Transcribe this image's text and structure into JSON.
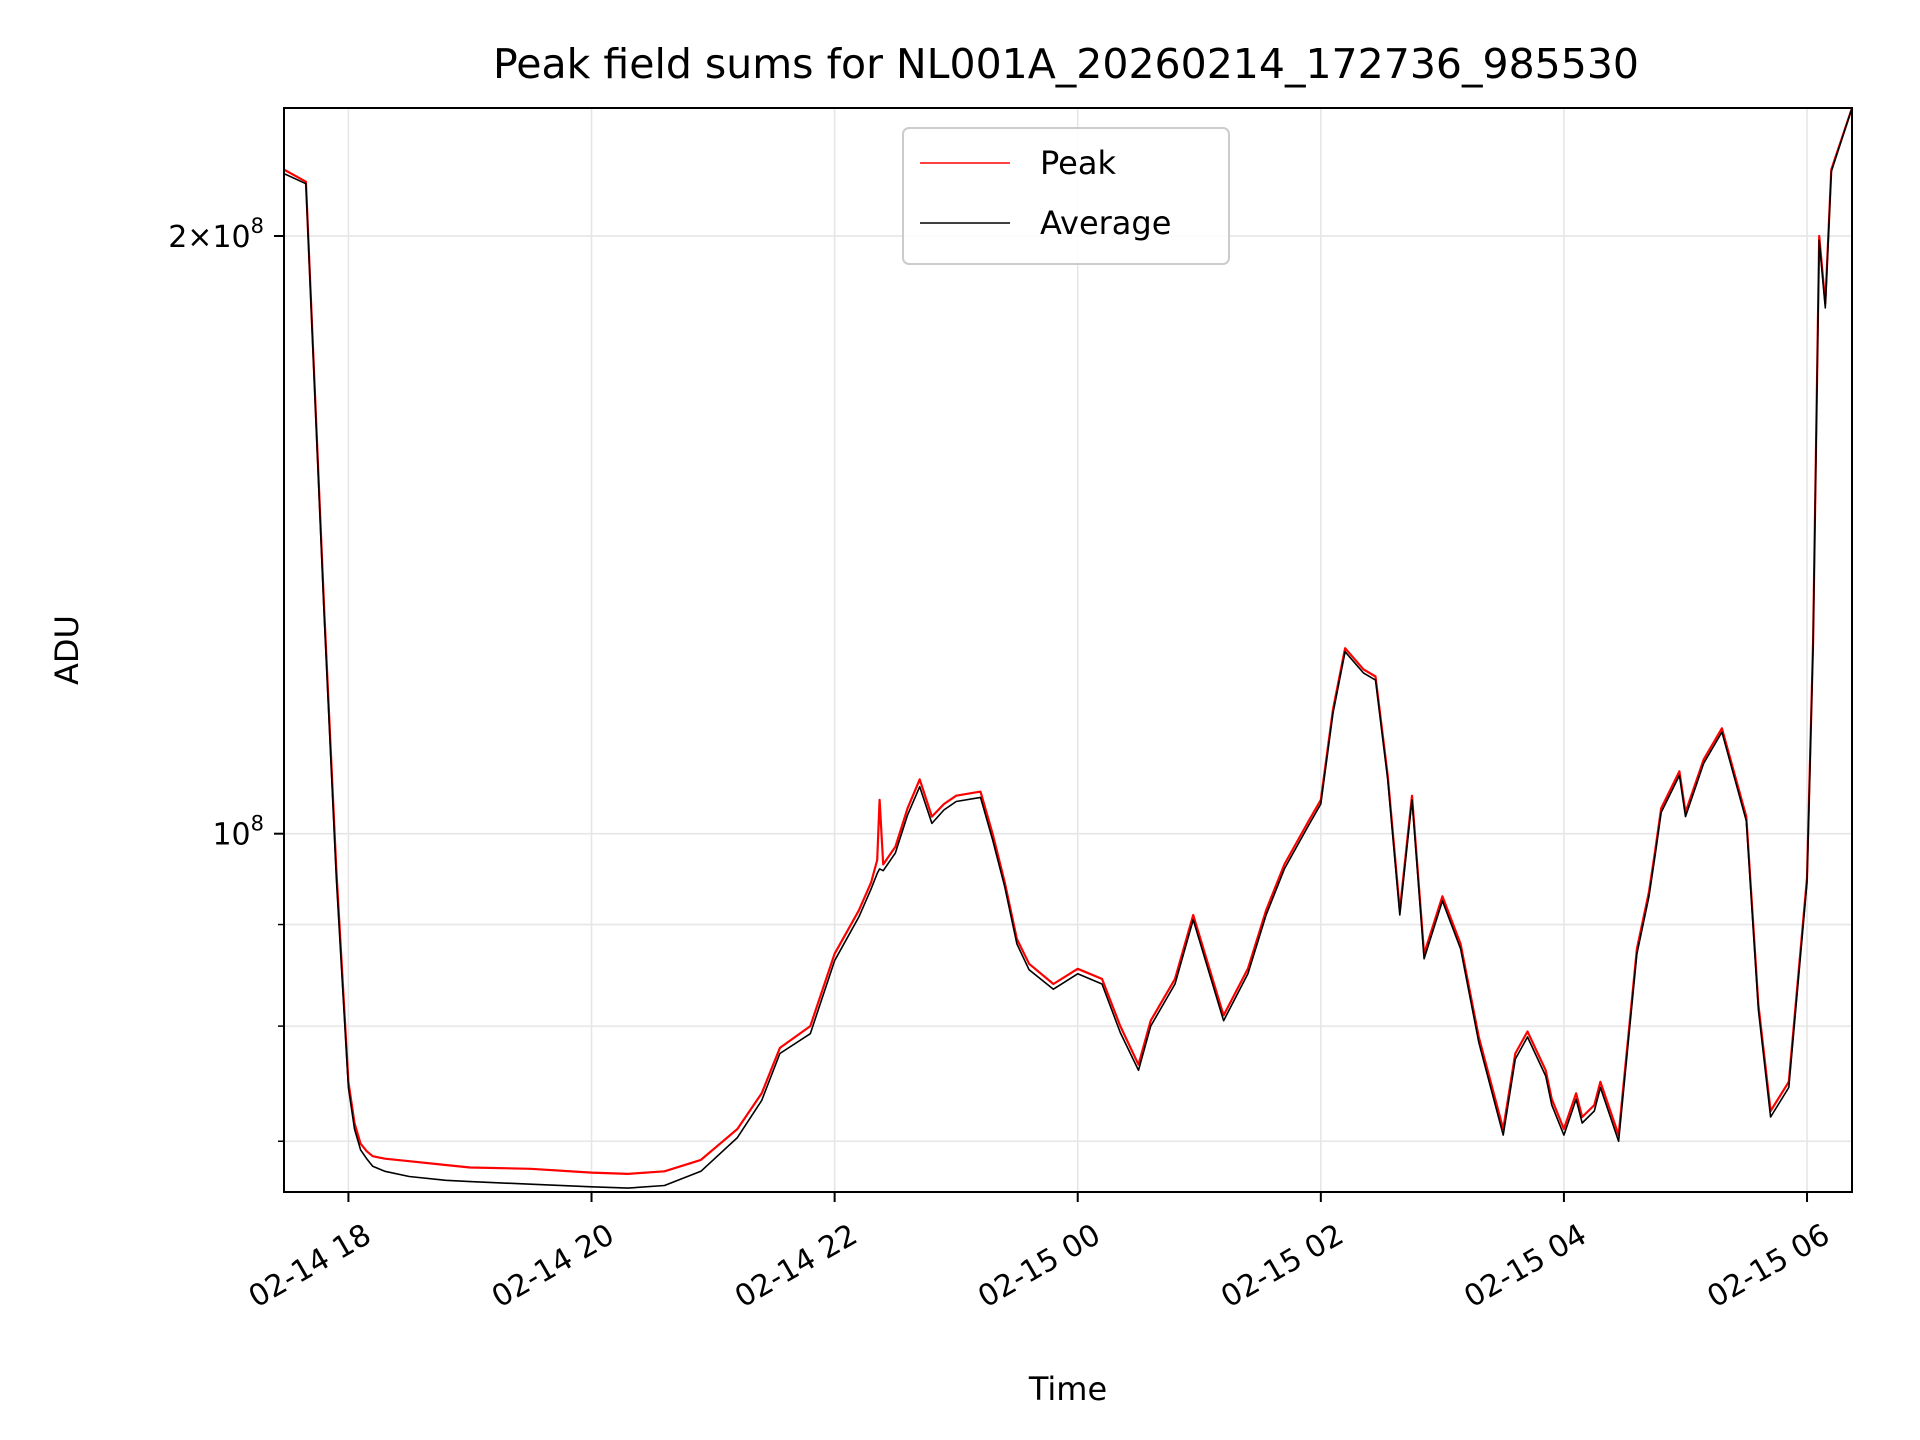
{
  "chart_data": {
    "type": "line",
    "title": "Peak field sums for NL001A_20260214_172736_985530",
    "xlabel": "Time",
    "ylabel": "ADU",
    "yscale": "log",
    "xlim_hours": [
      17.47,
      30.37
    ],
    "ylim": [
      66000000,
      232000000
    ],
    "x_unit": "hours since 02-14 00:00",
    "x_ticks": [
      {
        "value": 18,
        "label": "02-14 18"
      },
      {
        "value": 20,
        "label": "02-14 20"
      },
      {
        "value": 22,
        "label": "02-14 22"
      },
      {
        "value": 24,
        "label": "02-15 00"
      },
      {
        "value": 26,
        "label": "02-15 02"
      },
      {
        "value": 28,
        "label": "02-15 04"
      },
      {
        "value": 30,
        "label": "02-15 06"
      }
    ],
    "y_major_ticks": [
      {
        "value": 100000000,
        "base": "10",
        "exp": "8",
        "mantissa": ""
      },
      {
        "value": 200000000,
        "base": "10",
        "exp": "8",
        "mantissa": "2×"
      }
    ],
    "y_minor_ticks": [
      70000000,
      80000000,
      90000000
    ],
    "grid": true,
    "legend_location": "upper center",
    "colors": {
      "peak": "#ff0000",
      "average": "#000000",
      "grid": "#e6e6e6"
    },
    "series": [
      {
        "name": "Peak",
        "color": "#ff0000",
        "x": [
          17.47,
          17.65,
          17.8,
          17.9,
          18.0,
          18.05,
          18.1,
          18.15,
          18.2,
          18.3,
          18.5,
          18.8,
          19.0,
          19.5,
          20.0,
          20.3,
          20.6,
          20.9,
          21.2,
          21.4,
          21.55,
          21.8,
          22.0,
          22.2,
          22.3,
          22.35,
          22.37,
          22.4,
          22.5,
          22.6,
          22.7,
          22.8,
          22.9,
          23.0,
          23.2,
          23.3,
          23.4,
          23.5,
          23.6,
          23.8,
          24.0,
          24.2,
          24.35,
          24.5,
          24.6,
          24.8,
          24.95,
          25.2,
          25.4,
          25.55,
          25.7,
          25.9,
          26.0,
          26.1,
          26.2,
          26.35,
          26.45,
          26.55,
          26.65,
          26.75,
          26.85,
          27.0,
          27.15,
          27.3,
          27.5,
          27.6,
          27.7,
          27.85,
          27.9,
          28.0,
          28.1,
          28.15,
          28.25,
          28.3,
          28.45,
          28.6,
          28.7,
          28.75,
          28.8,
          28.95,
          29.0,
          29.15,
          29.3,
          29.5,
          29.6,
          29.7,
          29.85,
          30.0,
          30.05,
          30.1,
          30.15,
          30.2,
          30.37
        ],
        "y": [
          216000000,
          213000000,
          130000000,
          96000000,
          75000000,
          71500000,
          69800000,
          69200000,
          68800000,
          68600000,
          68400000,
          68100000,
          67900000,
          67800000,
          67500000,
          67400000,
          67600000,
          68500000,
          71000000,
          74000000,
          78000000,
          80000000,
          87000000,
          91500000,
          94500000,
          97000000,
          104000000,
          96500000,
          98500000,
          103000000,
          106500000,
          102000000,
          103500000,
          104500000,
          105000000,
          100000000,
          94500000,
          88500000,
          86000000,
          84000000,
          85500000,
          84500000,
          80000000,
          76500000,
          80500000,
          84500000,
          91000000,
          81000000,
          85500000,
          91500000,
          96500000,
          101500000,
          104000000,
          115500000,
          124000000,
          121000000,
          120000000,
          107000000,
          91500000,
          104500000,
          87000000,
          93000000,
          88000000,
          79000000,
          71000000,
          77500000,
          79500000,
          76000000,
          73500000,
          71000000,
          74000000,
          72000000,
          73000000,
          75000000,
          70500000,
          87500000,
          93500000,
          98000000,
          103000000,
          107500000,
          102500000,
          109000000,
          113000000,
          102000000,
          82000000,
          72500000,
          75000000,
          95000000,
          125000000,
          200000000,
          185000000,
          216000000,
          232000000
        ]
      },
      {
        "name": "Average",
        "color": "#000000",
        "x": [
          17.47,
          17.65,
          17.8,
          17.9,
          18.0,
          18.05,
          18.1,
          18.15,
          18.2,
          18.3,
          18.5,
          18.8,
          19.0,
          19.5,
          20.0,
          20.3,
          20.6,
          20.9,
          21.2,
          21.4,
          21.55,
          21.8,
          22.0,
          22.2,
          22.3,
          22.35,
          22.37,
          22.4,
          22.5,
          22.6,
          22.7,
          22.8,
          22.9,
          23.0,
          23.2,
          23.3,
          23.4,
          23.5,
          23.6,
          23.8,
          24.0,
          24.2,
          24.35,
          24.5,
          24.6,
          24.8,
          24.95,
          25.2,
          25.4,
          25.55,
          25.7,
          25.9,
          26.0,
          26.1,
          26.2,
          26.35,
          26.45,
          26.55,
          26.65,
          26.75,
          26.85,
          27.0,
          27.15,
          27.3,
          27.5,
          27.6,
          27.7,
          27.85,
          27.9,
          28.0,
          28.1,
          28.15,
          28.25,
          28.3,
          28.45,
          28.6,
          28.7,
          28.75,
          28.8,
          28.95,
          29.0,
          29.15,
          29.3,
          29.5,
          29.6,
          29.7,
          29.85,
          30.0,
          30.05,
          30.1,
          30.15,
          30.2,
          30.37
        ],
        "y": [
          215000000,
          212500000,
          129000000,
          95000000,
          74500000,
          71000000,
          69300000,
          68600000,
          68000000,
          67600000,
          67200000,
          66900000,
          66800000,
          66600000,
          66400000,
          66300000,
          66500000,
          67600000,
          70300000,
          73400000,
          77500000,
          79300000,
          86300000,
          90800000,
          93800000,
          95500000,
          96000000,
          95800000,
          97800000,
          102200000,
          105600000,
          101200000,
          102800000,
          103800000,
          104300000,
          99300000,
          94000000,
          88000000,
          85400000,
          83500000,
          85000000,
          84000000,
          79400000,
          76000000,
          80000000,
          84000000,
          90500000,
          80500000,
          85000000,
          91000000,
          96000000,
          101000000,
          103500000,
          115000000,
          123500000,
          120500000,
          119500000,
          106500000,
          91000000,
          104000000,
          86500000,
          92500000,
          87500000,
          78500000,
          70500000,
          77000000,
          79000000,
          75500000,
          73000000,
          70500000,
          73500000,
          71500000,
          72500000,
          74500000,
          70000000,
          87000000,
          93000000,
          97500000,
          102500000,
          107000000,
          102000000,
          108500000,
          112500000,
          101500000,
          81500000,
          72000000,
          74500000,
          94500000,
          124500000,
          199000000,
          184000000,
          215500000,
          232000000
        ]
      }
    ]
  }
}
